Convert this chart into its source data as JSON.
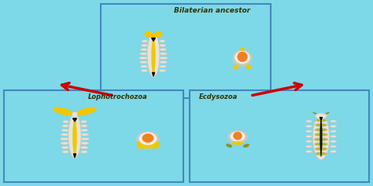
{
  "bg_color": "#7dd8e8",
  "box_edge_color": "#4488bb",
  "title_top": "Bilaterian ancestor",
  "title_bottom_left": "Lophotrochozoa",
  "title_bottom_right": "Ecdysozoa",
  "title_color": "#333300",
  "yellow_color": "#f0c800",
  "orange_color": "#f08020",
  "white_color": "#f0eeea",
  "gray_color": "#c8c8be",
  "dark_color": "#111111",
  "olive_color": "#909020",
  "olive_light": "#b8b840",
  "arrow_color": "#cc0000",
  "cream_color": "#e8e4d8",
  "figsize": [
    4.74,
    2.37
  ],
  "dpi": 100
}
